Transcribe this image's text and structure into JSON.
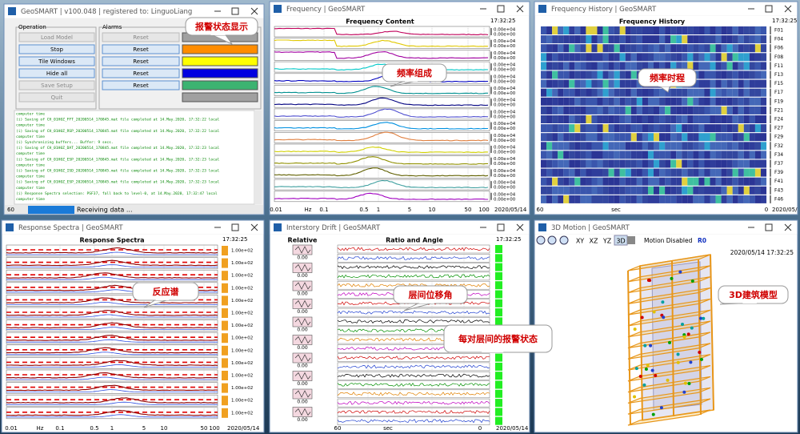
{
  "main_window": {
    "title": "GeoSMART | v100.048 | registered to: LinguoLiang",
    "operation_label": "Operation",
    "alarms_label": "Alarms",
    "buttons": [
      "Load Model",
      "Stop",
      "Tile Windows",
      "Hide all",
      "Save Setup",
      "Quit"
    ],
    "reset_label": "Reset",
    "alarm_colors": [
      "#a0a0a0",
      "#ff8c00",
      "#ffff00",
      "#0000e0",
      "#3cb371",
      "#a0a0a0"
    ],
    "log": [
      "computer time",
      "(i) Saving of CH_01H0Z_FFT_20200514_170845.mat file completed at 14.May.2020, 17:32:22 local",
      "computer time",
      "(i) Saving of CH_01H0Z_RSP_20200514_170845.mat file completed at 14.May.2020, 17:32:22 local",
      "computer time",
      "(i) Synchronizing buffers... Buffer: 9 secs.",
      "(i) Saving of CH_01H0Z_DAT_20200514_170845.mat file completed at 14.May.2020, 17:32:23 local",
      "computer time",
      "(i) Saving of CH_01H0Z_ESP_20200514_170845.mat file completed at 14.May.2020, 17:32:23 local",
      "computer time",
      "(i) Saving of CH_01H0Z_ISD_20200514_170845.mat file completed at 14.May.2020, 17:32:23 local",
      "computer time",
      "(i) Saving of CH_01H0Z_ESP_20200514_170845.mat file completed at 14.May.2020, 17:32:23 local",
      "computer time",
      "(i) Response Spectra selection: PSF37, fall back to level-0, at 14.May.2020, 17:32:47 local",
      "computer time"
    ],
    "counter": "60",
    "status": "Receiving data ...",
    "callout": "报警状态显示"
  },
  "frequency_window": {
    "title": "Frequency | GeoSMART",
    "plot_title": "Frequency Content",
    "time": "17:32:25",
    "row_label_top": "0.00e+04",
    "row_label_bottom": "0.00e+00",
    "row_colors": [
      "#c0005a",
      "#e0c800",
      "#a000a0",
      "#00c8c8",
      "#0000c0",
      "#009090",
      "#000080",
      "#5050d0",
      "#0090e0",
      "#e08040",
      "#d0d000",
      "#909000",
      "#606000",
      "#40a0a0",
      "#a000c0"
    ],
    "x_labels": [
      "0.01",
      "Hz",
      "0.1",
      "0.5",
      "1",
      "5",
      "10",
      "50",
      "100"
    ],
    "date": "2020/05/14",
    "callout": "频率组成"
  },
  "history_window": {
    "title": "Frequency History | GeoSMART",
    "plot_title": "Frequency History",
    "time": "17:32:25",
    "row_labels": [
      "F01",
      "F04",
      "F06",
      "F08",
      "F11",
      "F13",
      "F15",
      "F17",
      "F19",
      "F21",
      "F24",
      "F27",
      "F29",
      "F32",
      "F34",
      "F37",
      "F39",
      "F41",
      "F43",
      "F46"
    ],
    "x_labels": [
      "60",
      "sec",
      "0"
    ],
    "date": "2020/05/",
    "callout": "频率时程"
  },
  "spectra_window": {
    "title": "Response Spectra | GeoSMART",
    "plot_title": "Response Spectra",
    "time": "17:32:25",
    "row_label": "1.00e+02",
    "x_labels": [
      "0.01",
      "Hz",
      "0.1",
      "0.5",
      "1",
      "5",
      "10",
      "50",
      "100"
    ],
    "date": "2020/05/14",
    "callout": "反应谱"
  },
  "drift_window": {
    "title": "Interstory Drift | GeoSMART",
    "left_title": "Relative",
    "plot_title": "Ratio and Angle",
    "time": "17:32:25",
    "icon_value": "0.00",
    "x_labels": [
      "60",
      "sec",
      "0"
    ],
    "date": "2020/05/14",
    "callout": "层间位移角",
    "callout_alarm": "每对层间的报警状态"
  },
  "motion_window": {
    "title": "3D Motion | GeoSMART",
    "views": [
      "XY",
      "XZ",
      "YZ",
      "3D"
    ],
    "motion": "Motion Disabled",
    "mode": "R0",
    "timestamp": "2020/05/14 17:32:25",
    "callout": "3D建筑模型"
  }
}
